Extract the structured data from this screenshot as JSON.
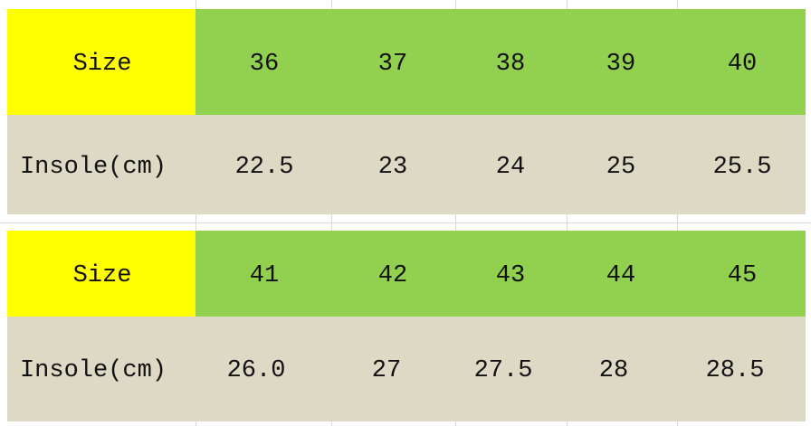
{
  "colors": {
    "label_fill": "#FFFF00",
    "size_fill": "#92D050",
    "insole_fill": "#DDD9C4"
  },
  "tables": [
    {
      "size_label": "Size",
      "insole_label": "Insole(cm)",
      "sizes": [
        "36",
        "37",
        "38",
        "39",
        "40"
      ],
      "insoles": [
        "22.5",
        "23",
        "24",
        "25",
        "25.5"
      ]
    },
    {
      "size_label": "Size",
      "insole_label": "Insole(cm)",
      "sizes": [
        "41",
        "42",
        "43",
        "44",
        "45"
      ],
      "insoles": [
        "26.0",
        "27",
        "27.5",
        "28",
        "28.5"
      ]
    }
  ]
}
